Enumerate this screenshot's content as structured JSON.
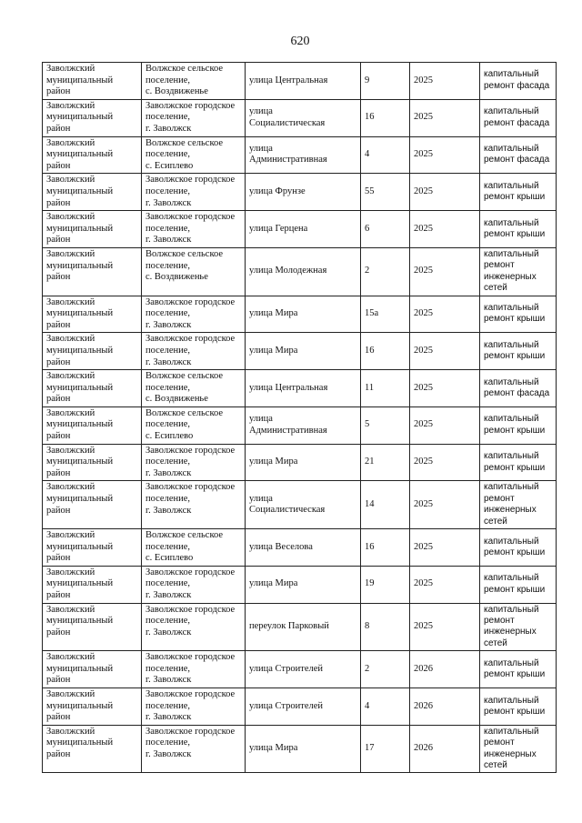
{
  "page_number": "620",
  "rows": [
    {
      "district": "Заволжский\nмуниципальный\nрайон",
      "settlement": "Волжское сельское\nпоселение,\nс. Воздвиженье",
      "street": "улица Центральная",
      "house": "9",
      "year": "2025",
      "work": "капитальный\nремонт фасада"
    },
    {
      "district": "Заволжский\nмуниципальный\nрайон",
      "settlement": "Заволжское городское\nпоселение,\nг. Заволжск",
      "street": "улица\nСоциалистическая",
      "house": "16",
      "year": "2025",
      "work": "капитальный\nремонт фасада"
    },
    {
      "district": "Заволжский\nмуниципальный\nрайон",
      "settlement": "Волжское сельское\nпоселение,\nс. Есиплево",
      "street": "улица\nАдминистративная",
      "house": "4",
      "year": "2025",
      "work": "капитальный\nремонт фасада"
    },
    {
      "district": "Заволжский\nмуниципальный\nрайон",
      "settlement": "Заволжское городское\nпоселение,\nг. Заволжск",
      "street": "улица Фрунзе",
      "house": "55",
      "year": "2025",
      "work": "капитальный\nремонт крыши"
    },
    {
      "district": "Заволжский\nмуниципальный\nрайон",
      "settlement": "Заволжское городское\nпоселение,\nг. Заволжск",
      "street": "улица Герцена",
      "house": "6",
      "year": "2025",
      "work": "капитальный\nремонт крыши"
    },
    {
      "district": "Заволжский\nмуниципальный\nрайон",
      "settlement": "Волжское сельское\nпоселение,\nс. Воздвиженье",
      "street": "улица Молодежная",
      "house": "2",
      "year": "2025",
      "work": "капитальный\nремонт\nинженерных\nсетей"
    },
    {
      "district": "Заволжский\nмуниципальный\nрайон",
      "settlement": "Заволжское городское\nпоселение,\nг. Заволжск",
      "street": "улица Мира",
      "house": "15а",
      "year": "2025",
      "work": "капитальный\nремонт крыши"
    },
    {
      "district": "Заволжский\nмуниципальный\nрайон",
      "settlement": "Заволжское городское\nпоселение,\nг. Заволжск",
      "street": "улица Мира",
      "house": "16",
      "year": "2025",
      "work": "капитальный\nремонт крыши"
    },
    {
      "district": "Заволжский\nмуниципальный\nрайон",
      "settlement": "Волжское сельское\nпоселение,\nс. Воздвиженье",
      "street": "улица Центральная",
      "house": "11",
      "year": "2025",
      "work": "капитальный\nремонт фасада"
    },
    {
      "district": "Заволжский\nмуниципальный\nрайон",
      "settlement": "Волжское сельское\nпоселение,\nс. Есиплево",
      "street": "улица\nАдминистративная",
      "house": "5",
      "year": "2025",
      "work": "капитальный\nремонт крыши"
    },
    {
      "district": "Заволжский\nмуниципальный\nрайон",
      "settlement": "Заволжское городское\nпоселение,\nг. Заволжск",
      "street": "улица Мира",
      "house": "21",
      "year": "2025",
      "work": "капитальный\nремонт крыши"
    },
    {
      "district": "Заволжский\nмуниципальный\nрайон",
      "settlement": "Заволжское городское\nпоселение,\nг. Заволжск",
      "street": "улица\nСоциалистическая",
      "house": "14",
      "year": "2025",
      "work": "капитальный\nремонт\nинженерных\nсетей"
    },
    {
      "district": "Заволжский\nмуниципальный\nрайон",
      "settlement": "Волжское сельское\nпоселение,\nс. Есиплево",
      "street": "улица Веселова",
      "house": "16",
      "year": "2025",
      "work": "капитальный\nремонт крыши"
    },
    {
      "district": "Заволжский\nмуниципальный\nрайон",
      "settlement": "Заволжское городское\nпоселение,\nг. Заволжск",
      "street": "улица Мира",
      "house": "19",
      "year": "2025",
      "work": "капитальный\nремонт крыши"
    },
    {
      "district": "Заволжский\nмуниципальный\nрайон",
      "settlement": "Заволжское городское\nпоселение,\nг. Заволжск",
      "street": "переулок Парковый",
      "house": "8",
      "year": "2025",
      "work": "капитальный\nремонт\nинженерных\nсетей"
    },
    {
      "district": "Заволжский\nмуниципальный\nрайон",
      "settlement": "Заволжское городское\nпоселение,\nг. Заволжск",
      "street": "улица Строителей",
      "house": "2",
      "year": "2026",
      "work": "капитальный\nремонт крыши"
    },
    {
      "district": "Заволжский\nмуниципальный\nрайон",
      "settlement": "Заволжское городское\nпоселение,\nг. Заволжск",
      "street": "улица Строителей",
      "house": "4",
      "year": "2026",
      "work": "капитальный\nремонт крыши"
    },
    {
      "district": "Заволжский\nмуниципальный\nрайон",
      "settlement": "Заволжское городское\nпоселение,\nг. Заволжск",
      "street": "улица Мира",
      "house": "17",
      "year": "2026",
      "work": "капитальный\nремонт\nинженерных\nсетей"
    }
  ]
}
